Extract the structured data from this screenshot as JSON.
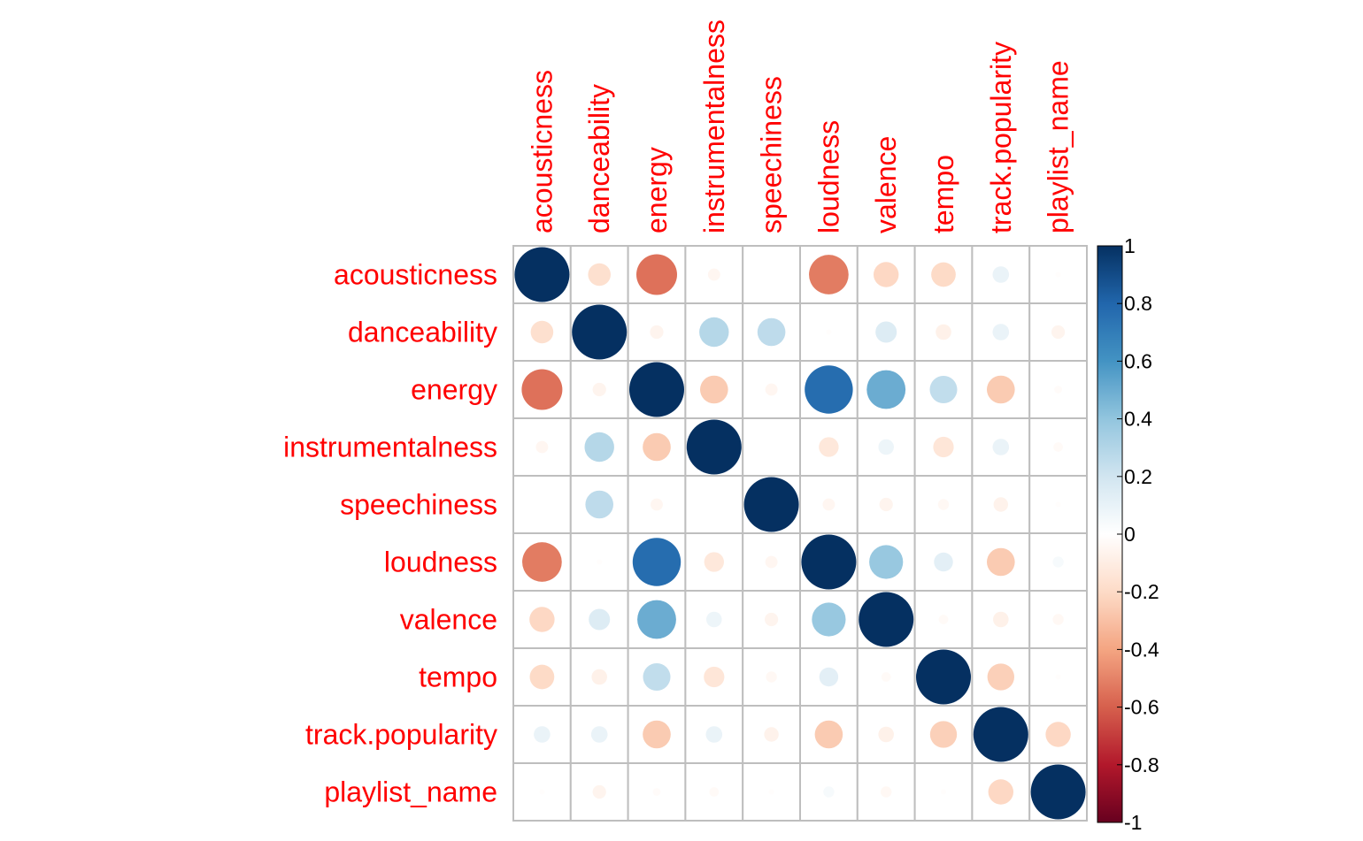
{
  "chart_data": {
    "type": "heatmap",
    "variables": [
      "acousticness",
      "danceability",
      "energy",
      "instrumentalness",
      "speechiness",
      "loudness",
      "valence",
      "tempo",
      "track.popularity",
      "playlist_name"
    ],
    "matrix": [
      [
        1.0,
        -0.17,
        -0.55,
        -0.05,
        0.0,
        -0.52,
        -0.21,
        -0.2,
        0.09,
        -0.01
      ],
      [
        -0.17,
        1.0,
        -0.06,
        0.29,
        0.26,
        -0.01,
        0.15,
        -0.08,
        0.09,
        -0.06
      ],
      [
        -0.55,
        -0.06,
        1.0,
        -0.26,
        -0.05,
        0.77,
        0.5,
        0.25,
        -0.26,
        -0.02
      ],
      [
        -0.05,
        0.29,
        -0.26,
        1.0,
        0.0,
        -0.13,
        0.08,
        -0.14,
        0.09,
        -0.03
      ],
      [
        0.0,
        0.26,
        -0.05,
        0.0,
        1.0,
        -0.05,
        -0.06,
        -0.04,
        -0.07,
        -0.01
      ],
      [
        -0.52,
        -0.01,
        0.77,
        -0.13,
        -0.05,
        1.0,
        0.38,
        0.12,
        -0.26,
        0.04
      ],
      [
        -0.21,
        0.15,
        0.5,
        0.08,
        -0.06,
        0.38,
        1.0,
        -0.03,
        -0.08,
        -0.04
      ],
      [
        -0.2,
        -0.08,
        0.25,
        -0.14,
        -0.04,
        0.12,
        -0.03,
        1.0,
        -0.24,
        -0.01
      ],
      [
        0.09,
        0.09,
        -0.26,
        0.09,
        -0.07,
        -0.26,
        -0.08,
        -0.24,
        1.0,
        -0.21
      ],
      [
        -0.01,
        -0.06,
        -0.02,
        -0.03,
        -0.01,
        0.04,
        -0.04,
        -0.01,
        -0.21,
        1.0
      ]
    ],
    "value_range": [
      -1,
      1
    ],
    "colorbar_ticks": [
      "1",
      "0.8",
      "0.6",
      "0.4",
      "0.2",
      "0",
      "-0.2",
      "-0.4",
      "-0.6",
      "-0.8",
      "-1"
    ],
    "colorbar_values": [
      1,
      0.8,
      0.6,
      0.4,
      0.2,
      0,
      -0.2,
      -0.4,
      -0.6,
      -0.8,
      -1
    ],
    "colors": {
      "label": "#ff0000",
      "grid": "#bebebe",
      "palette": [
        "#67001f",
        "#b2182b",
        "#d6604d",
        "#f4a582",
        "#fddbc7",
        "#ffffff",
        "#d1e5f0",
        "#92c5de",
        "#4393c3",
        "#2166ac",
        "#053061"
      ]
    }
  }
}
